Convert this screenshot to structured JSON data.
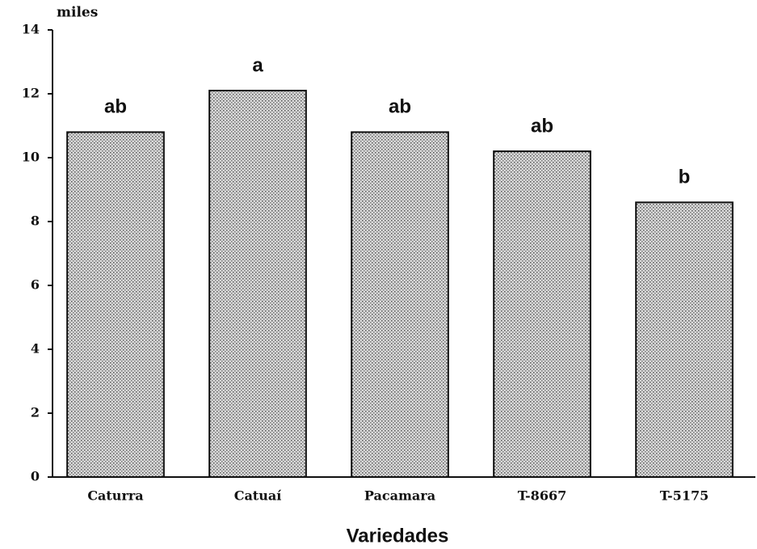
{
  "chart_data": {
    "type": "bar",
    "ylabel": "miles",
    "xlabel": "Variedades",
    "categories": [
      "Caturra",
      "Catuaí",
      "Pacamara",
      "T-8667",
      "T-5175"
    ],
    "values": [
      10.8,
      12.1,
      10.8,
      10.2,
      8.6
    ],
    "annotations": [
      "ab",
      "a",
      "ab",
      "ab",
      "b"
    ],
    "color": "#c8c8c8",
    "ylim": [
      0,
      14
    ],
    "yticks": [
      0,
      2,
      4,
      6,
      8,
      10,
      12,
      14
    ],
    "grid": false
  }
}
